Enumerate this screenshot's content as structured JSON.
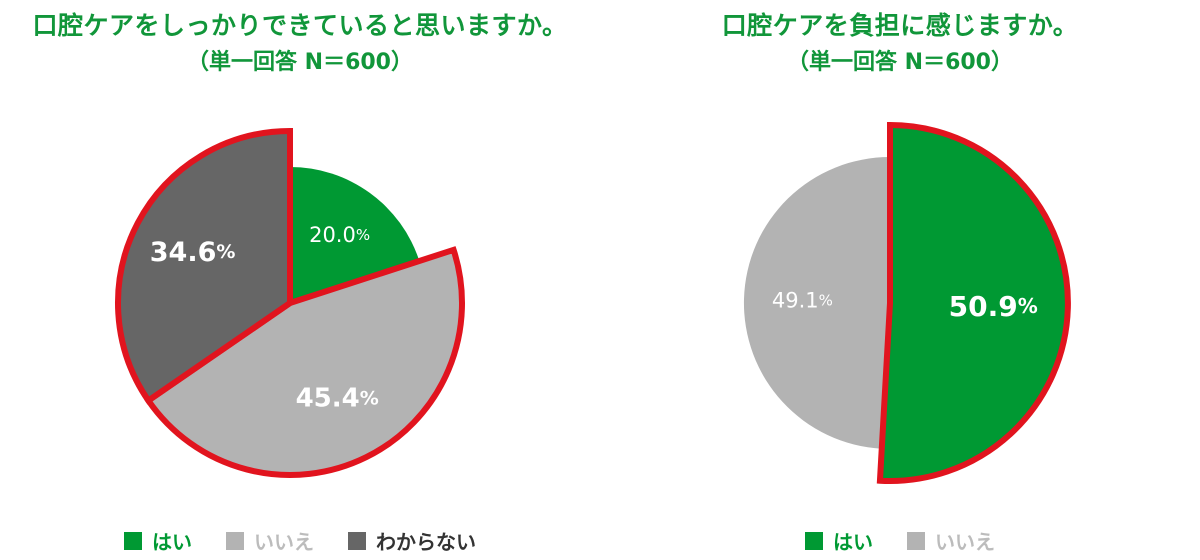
{
  "colors": {
    "title": "#11963a",
    "highlight_outline": "#e1141e",
    "slice_label": "#ffffff"
  },
  "chart_data": [
    {
      "type": "pie",
      "title": "口腔ケアをしっかりできていると思いますか。",
      "subtitle": "（単一回答 N＝600）",
      "slices": [
        {
          "label": "はい",
          "value": 20.0,
          "value_text": "20.0",
          "color": "#009933",
          "label_color": "#009933",
          "highlighted": false
        },
        {
          "label": "いいえ",
          "value": 45.4,
          "value_text": "45.4",
          "color": "#b3b3b3",
          "label_color": "#bcbcbc",
          "highlighted": true
        },
        {
          "label": "わからない",
          "value": 34.6,
          "value_text": "34.6",
          "color": "#666666",
          "label_color": "#333333",
          "highlighted": true
        }
      ],
      "percent_sign": "%",
      "legend_position": "bottom"
    },
    {
      "type": "pie",
      "title": "口腔ケアを負担に感じますか。",
      "subtitle": "（単一回答 N＝600）",
      "slices": [
        {
          "label": "はい",
          "value": 50.9,
          "value_text": "50.9",
          "color": "#009933",
          "label_color": "#009933",
          "highlighted": true
        },
        {
          "label": "いいえ",
          "value": 49.1,
          "value_text": "49.1",
          "color": "#b3b3b3",
          "label_color": "#bcbcbc",
          "highlighted": false
        }
      ],
      "percent_sign": "%",
      "legend_position": "bottom"
    }
  ]
}
